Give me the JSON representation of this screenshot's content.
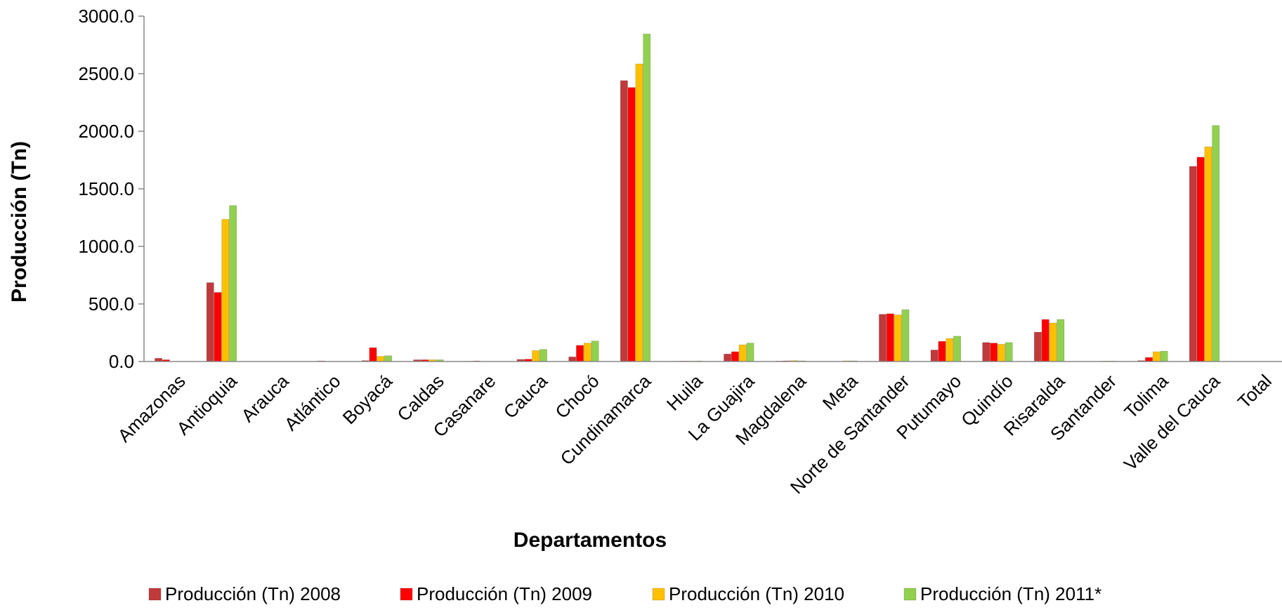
{
  "chart_data": {
    "type": "bar",
    "title": "",
    "xlabel": "Departamentos",
    "ylabel": "Producción (Tn)",
    "ylim": [
      0,
      3000
    ],
    "yticks": [
      "0.0",
      "500.0",
      "1000.0",
      "1500.0",
      "2000.0",
      "2500.0",
      "3000.0"
    ],
    "grid": false,
    "legend_position": "bottom",
    "categories": [
      "Amazonas",
      "Antioquia",
      "Arauca",
      "Atlántico",
      "Boyacá",
      "Caldas",
      "Casanare",
      "Cauca",
      "Chocó",
      "Cundinamarca",
      "Huila",
      "La Guajira",
      "Magdalena",
      "Meta",
      "Norte de Santander",
      "Putumayo",
      "Quindío",
      "Risaralda",
      "Santander",
      "Tolima",
      "Valle del Cauca",
      "Total"
    ],
    "series": [
      {
        "name": "Producción (Tn) 2008",
        "color": "#c0393b",
        "values": [
          28,
          685,
          0,
          0,
          8,
          15,
          3,
          18,
          40,
          2440,
          3,
          65,
          4,
          0,
          410,
          100,
          165,
          255,
          0,
          8,
          1695,
          0
        ]
      },
      {
        "name": "Producción (Tn) 2009",
        "color": "#ff0000",
        "values": [
          15,
          600,
          0,
          5,
          120,
          15,
          5,
          20,
          140,
          2380,
          4,
          85,
          6,
          0,
          415,
          175,
          160,
          365,
          0,
          35,
          1775,
          0
        ]
      },
      {
        "name": "Producción (Tn) 2010",
        "color": "#ffc000",
        "values": [
          0,
          1235,
          0,
          0,
          45,
          15,
          0,
          95,
          160,
          2585,
          4,
          145,
          8,
          6,
          405,
          200,
          150,
          335,
          4,
          85,
          1865,
          0
        ]
      },
      {
        "name": "Producción (Tn) 2011*",
        "color": "#92d050",
        "values": [
          0,
          1355,
          0,
          0,
          50,
          15,
          0,
          105,
          178,
          2845,
          5,
          160,
          6,
          6,
          450,
          220,
          165,
          365,
          4,
          90,
          2050,
          0
        ]
      }
    ]
  }
}
